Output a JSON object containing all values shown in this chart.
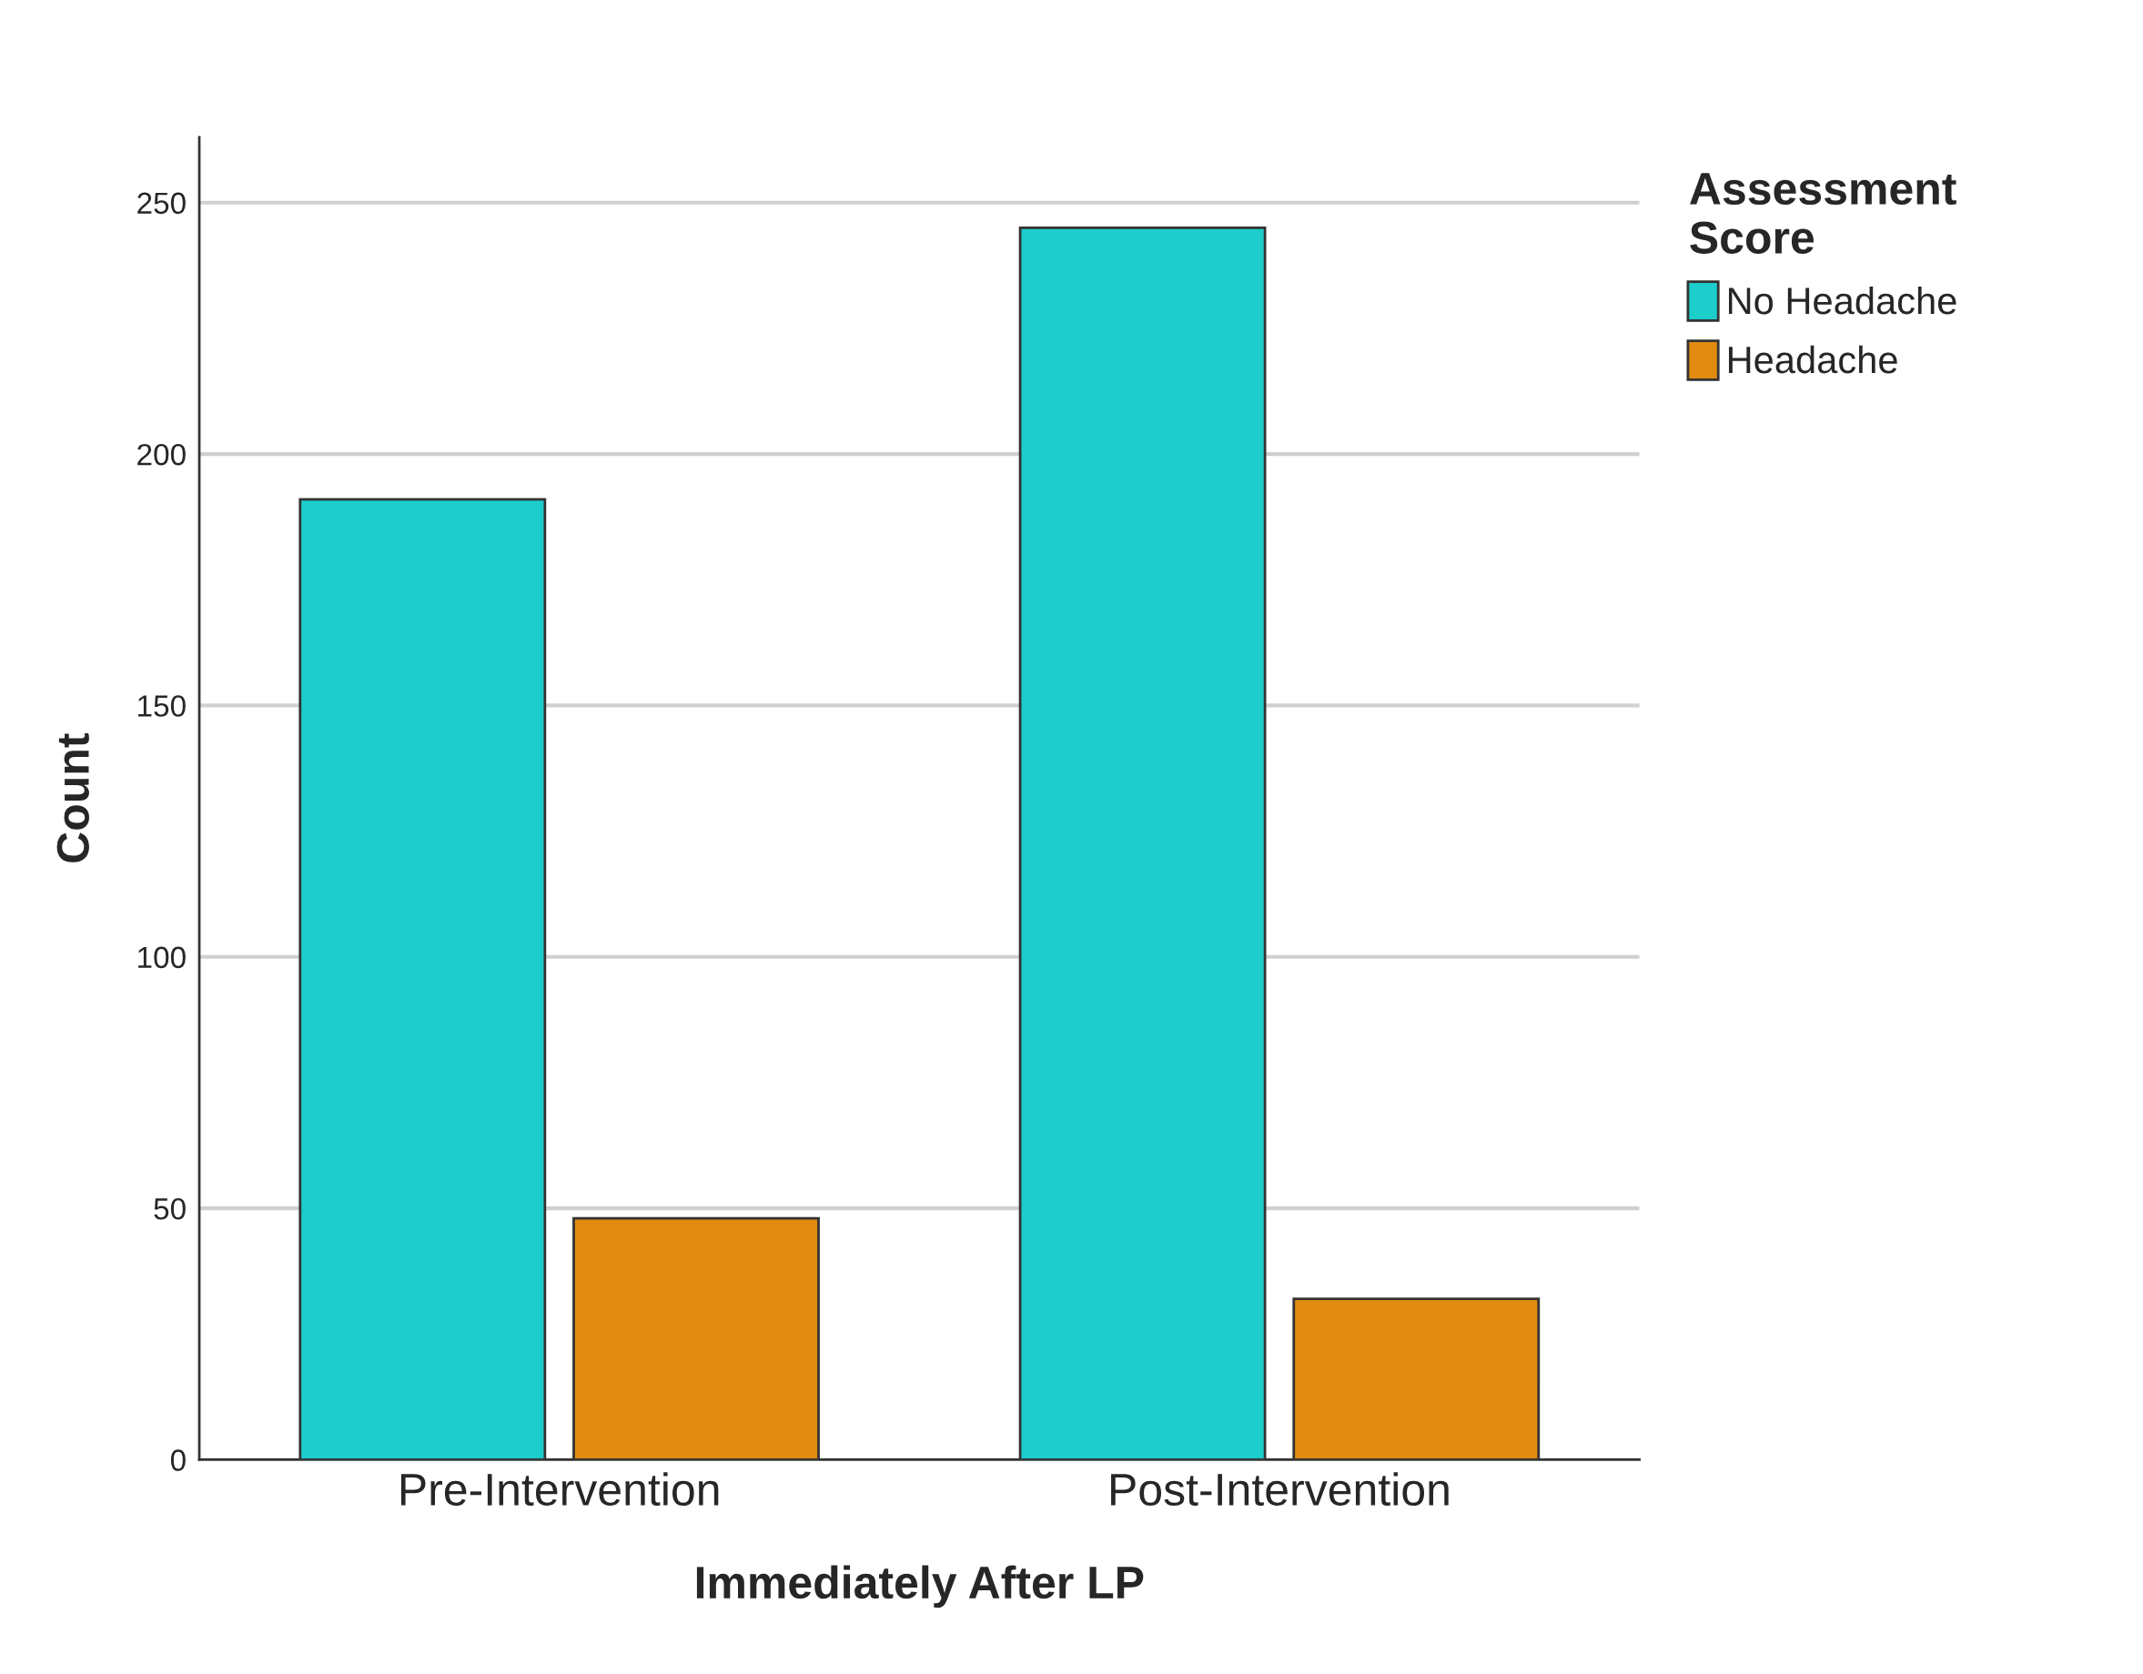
{
  "chart_data": {
    "type": "bar",
    "xlabel": "Immediately After LP",
    "ylabel": "Count",
    "legend_title": "Assessment\nScore",
    "categories": [
      "Pre-Intervention",
      "Post-Intervention"
    ],
    "series": [
      {
        "name": "No Headache",
        "color": "#1ccdcc",
        "values": [
          191,
          245
        ]
      },
      {
        "name": "Headache",
        "color": "#e08a10",
        "values": [
          48,
          32
        ]
      }
    ],
    "ylim": [
      0,
      263
    ],
    "yticks": [
      0,
      50,
      100,
      150,
      200,
      250
    ],
    "grid": "y",
    "legend": "top right"
  }
}
